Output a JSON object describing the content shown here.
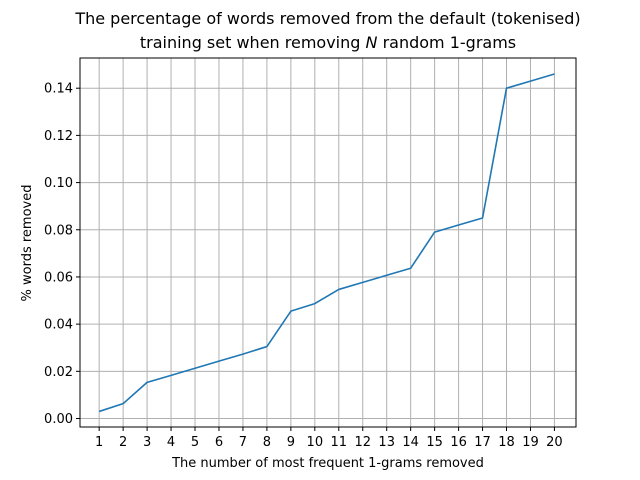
{
  "chart_data": {
    "type": "line",
    "title_line1": "The percentage of words removed from the default (tokenised)",
    "title_line2_pre": "training set when removing ",
    "title_line2_var": "N",
    "title_line2_post": " random 1-grams",
    "xlabel": "The number of most frequent 1-grams removed",
    "ylabel": "% words removed",
    "x": [
      1,
      2,
      3,
      4,
      5,
      6,
      7,
      8,
      9,
      10,
      11,
      12,
      13,
      14,
      15,
      16,
      17,
      18,
      19,
      20
    ],
    "y": [
      0.003,
      0.0063,
      0.0153,
      0.0183,
      0.0213,
      0.0243,
      0.0273,
      0.0305,
      0.0455,
      0.0487,
      0.0547,
      0.0577,
      0.0607,
      0.0637,
      0.079,
      0.082,
      0.085,
      0.14,
      0.143,
      0.146
    ],
    "xlim": [
      0.2,
      20.9
    ],
    "ylim": [
      -0.0036,
      0.1528
    ],
    "xticks": [
      "1",
      "2",
      "3",
      "4",
      "5",
      "6",
      "7",
      "8",
      "9",
      "10",
      "11",
      "12",
      "13",
      "14",
      "15",
      "16",
      "17",
      "18",
      "19",
      "20"
    ],
    "yticks": [
      0.0,
      0.02,
      0.04,
      0.06,
      0.08,
      0.1,
      0.12,
      0.14
    ],
    "ytick_labels": [
      "0.00",
      "0.02",
      "0.04",
      "0.06",
      "0.08",
      "0.10",
      "0.12",
      "0.14"
    ],
    "grid": true,
    "line_color": "#1f77b4",
    "grid_color": "#b0b0b0"
  }
}
